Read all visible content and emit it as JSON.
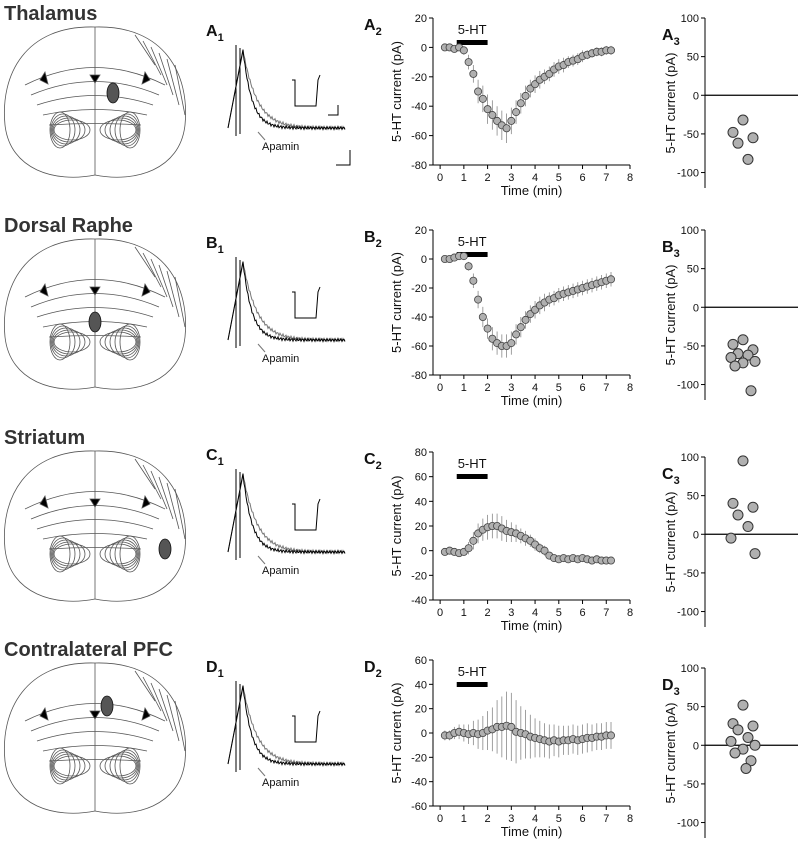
{
  "rows": [
    {
      "region": "Thalamus",
      "panel": "A",
      "panel_sub": "1",
      "annotation": "Apamin"
    },
    {
      "region": "Dorsal Raphe",
      "panel": "B",
      "panel_sub": "1",
      "annotation": "Apamin"
    },
    {
      "region": "Striatum",
      "panel": "C",
      "panel_sub": "1",
      "annotation": "Apamin"
    },
    {
      "region": "Contralateral PFC",
      "panel": "D",
      "panel_sub": "1",
      "annotation": "Apamin"
    }
  ],
  "chart_data": [
    {
      "type": "line",
      "panel": "A",
      "panel_sub": "2",
      "xlabel": "Time (min)",
      "ylabel": "5-HT current (pA)",
      "xlim": [
        -0.3,
        8
      ],
      "xticks": [
        0,
        1,
        2,
        3,
        4,
        5,
        6,
        7,
        8
      ],
      "ylim": [
        -80,
        20
      ],
      "yticks": [
        -80,
        -60,
        -40,
        -20,
        0,
        20
      ],
      "annotations": [
        {
          "text": "5-HT",
          "x": [
            0.7,
            2.0
          ]
        }
      ],
      "x": [
        0.2,
        0.4,
        0.6,
        0.8,
        1.0,
        1.2,
        1.4,
        1.6,
        1.8,
        2.0,
        2.2,
        2.4,
        2.6,
        2.8,
        3.0,
        3.2,
        3.4,
        3.6,
        3.8,
        4.0,
        4.2,
        4.4,
        4.6,
        4.8,
        5.0,
        5.2,
        5.4,
        5.6,
        5.8,
        6.0,
        6.2,
        6.4,
        6.6,
        6.8,
        7.0,
        7.2
      ],
      "series": [
        {
          "color": "#b0b0b0",
          "values": [
            0,
            0,
            -1,
            0,
            -2,
            -10,
            -18,
            -30,
            -35,
            -42,
            -46,
            -50,
            -53,
            -55,
            -50,
            -44,
            -38,
            -33,
            -28,
            -25,
            -22,
            -20,
            -18,
            -15,
            -13,
            -12,
            -10,
            -9,
            -8,
            -6,
            -5,
            -4,
            -3,
            -3,
            -2,
            -2
          ],
          "errors": [
            2,
            2,
            2,
            2,
            3,
            5,
            6,
            8,
            9,
            10,
            10,
            10,
            10,
            10,
            9,
            8,
            7,
            7,
            6,
            6,
            6,
            5,
            5,
            5,
            5,
            5,
            4,
            4,
            4,
            4,
            3,
            3,
            3,
            3,
            3,
            3
          ]
        }
      ]
    },
    {
      "type": "strip",
      "panel": "A",
      "panel_sub": "3",
      "ylabel": "5-HT current (pA)",
      "ylim": [
        -120,
        100
      ],
      "yticks": [
        -100,
        -50,
        0,
        50,
        100
      ],
      "zero_line": true,
      "color": "#b0b0b0",
      "values": [
        -32,
        -48,
        -55,
        -62,
        -83
      ]
    },
    {
      "type": "line",
      "panel": "B",
      "panel_sub": "2",
      "xlabel": "Time (min)",
      "ylabel": "5-HT current (pA)",
      "xlim": [
        -0.3,
        8
      ],
      "xticks": [
        0,
        1,
        2,
        3,
        4,
        5,
        6,
        7,
        8
      ],
      "ylim": [
        -80,
        20
      ],
      "yticks": [
        -80,
        -60,
        -40,
        -20,
        0,
        20
      ],
      "annotations": [
        {
          "text": "5-HT",
          "x": [
            0.7,
            2.0
          ]
        }
      ],
      "x": [
        0.2,
        0.4,
        0.6,
        0.8,
        1.0,
        1.2,
        1.4,
        1.6,
        1.8,
        2.0,
        2.2,
        2.4,
        2.6,
        2.8,
        3.0,
        3.2,
        3.4,
        3.6,
        3.8,
        4.0,
        4.2,
        4.4,
        4.6,
        4.8,
        5.0,
        5.2,
        5.4,
        5.6,
        5.8,
        6.0,
        6.2,
        6.4,
        6.6,
        6.8,
        7.0,
        7.2
      ],
      "series": [
        {
          "color": "#b0b0b0",
          "values": [
            0,
            0,
            1,
            2,
            2,
            -5,
            -15,
            -28,
            -40,
            -48,
            -55,
            -58,
            -60,
            -60,
            -58,
            -52,
            -47,
            -42,
            -38,
            -35,
            -32,
            -30,
            -28,
            -27,
            -25,
            -24,
            -23,
            -22,
            -21,
            -20,
            -19,
            -18,
            -17,
            -16,
            -15,
            -14
          ],
          "errors": [
            2,
            2,
            2,
            2,
            2,
            3,
            5,
            6,
            7,
            7,
            8,
            8,
            8,
            8,
            8,
            7,
            7,
            6,
            6,
            6,
            6,
            6,
            5,
            5,
            5,
            5,
            5,
            5,
            5,
            5,
            5,
            5,
            5,
            5,
            5,
            5
          ]
        }
      ]
    },
    {
      "type": "strip",
      "panel": "B",
      "panel_sub": "3",
      "ylabel": "5-HT current (pA)",
      "ylim": [
        -120,
        100
      ],
      "yticks": [
        -100,
        -50,
        0,
        50,
        100
      ],
      "zero_line": true,
      "color": "#b0b0b0",
      "values": [
        -42,
        -48,
        -55,
        -60,
        -62,
        -65,
        -70,
        -72,
        -76,
        -108
      ]
    },
    {
      "type": "line",
      "panel": "C",
      "panel_sub": "2",
      "xlabel": "Time (min)",
      "ylabel": "5-HT current (pA)",
      "xlim": [
        -0.3,
        8
      ],
      "xticks": [
        0,
        1,
        2,
        3,
        4,
        5,
        6,
        7,
        8
      ],
      "ylim": [
        -40,
        80
      ],
      "yticks": [
        -40,
        -20,
        0,
        20,
        40,
        60,
        80
      ],
      "annotations": [
        {
          "text": "5-HT",
          "x": [
            0.7,
            2.0
          ]
        }
      ],
      "x": [
        0.2,
        0.4,
        0.6,
        0.8,
        1.0,
        1.2,
        1.4,
        1.6,
        1.8,
        2.0,
        2.2,
        2.4,
        2.6,
        2.8,
        3.0,
        3.2,
        3.4,
        3.6,
        3.8,
        4.0,
        4.2,
        4.4,
        4.6,
        4.8,
        5.0,
        5.2,
        5.4,
        5.6,
        5.8,
        6.0,
        6.2,
        6.4,
        6.6,
        6.8,
        7.0,
        7.2
      ],
      "series": [
        {
          "color": "#b0b0b0",
          "values": [
            -1,
            0,
            -1,
            -2,
            -1,
            2,
            8,
            14,
            17,
            19,
            20,
            20,
            18,
            16,
            15,
            14,
            12,
            10,
            8,
            5,
            2,
            0,
            -4,
            -6,
            -7,
            -6,
            -7,
            -6,
            -7,
            -6,
            -7,
            -8,
            -7,
            -8,
            -8,
            -8
          ],
          "errors": [
            3,
            3,
            3,
            3,
            3,
            5,
            7,
            8,
            9,
            10,
            10,
            10,
            10,
            9,
            8,
            7,
            6,
            6,
            5,
            5,
            4,
            4,
            3,
            3,
            3,
            3,
            3,
            3,
            3,
            3,
            3,
            3,
            3,
            3,
            3,
            3
          ]
        }
      ]
    },
    {
      "type": "strip",
      "panel": "C",
      "panel_sub": "3",
      "ylabel": "5-HT current (pA)",
      "ylim": [
        -120,
        100
      ],
      "yticks": [
        -100,
        -50,
        0,
        50,
        100
      ],
      "zero_line": true,
      "color": "#b0b0b0",
      "values": [
        95,
        40,
        35,
        25,
        10,
        -5,
        -25
      ]
    },
    {
      "type": "line",
      "panel": "D",
      "panel_sub": "2",
      "xlabel": "Time (min)",
      "ylabel": "5-HT current (pA)",
      "xlim": [
        -0.3,
        8
      ],
      "xticks": [
        0,
        1,
        2,
        3,
        4,
        5,
        6,
        7,
        8
      ],
      "ylim": [
        -60,
        60
      ],
      "yticks": [
        -60,
        -40,
        -20,
        0,
        20,
        40,
        60
      ],
      "annotations": [
        {
          "text": "5-HT",
          "x": [
            0.7,
            2.0
          ]
        }
      ],
      "x": [
        0.2,
        0.4,
        0.6,
        0.8,
        1.0,
        1.2,
        1.4,
        1.6,
        1.8,
        2.0,
        2.2,
        2.4,
        2.6,
        2.8,
        3.0,
        3.2,
        3.4,
        3.6,
        3.8,
        4.0,
        4.2,
        4.4,
        4.6,
        4.8,
        5.0,
        5.2,
        5.4,
        5.6,
        5.8,
        6.0,
        6.2,
        6.4,
        6.6,
        6.8,
        7.0,
        7.2
      ],
      "series": [
        {
          "color": "#b0b0b0",
          "values": [
            -2,
            -2,
            0,
            1,
            0,
            -1,
            0,
            -1,
            0,
            2,
            3,
            5,
            5,
            6,
            5,
            1,
            0,
            -1,
            -3,
            -4,
            -5,
            -6,
            -7,
            -6,
            -7,
            -6,
            -6,
            -5,
            -6,
            -5,
            -4,
            -4,
            -3,
            -3,
            -2,
            -2
          ],
          "errors": [
            4,
            4,
            5,
            6,
            7,
            8,
            10,
            12,
            14,
            16,
            18,
            22,
            25,
            28,
            28,
            26,
            22,
            20,
            18,
            16,
            15,
            14,
            14,
            13,
            13,
            12,
            12,
            12,
            12,
            12,
            12,
            11,
            11,
            11,
            11,
            11
          ]
        }
      ]
    },
    {
      "type": "strip",
      "panel": "D",
      "panel_sub": "3",
      "ylabel": "5-HT current (pA)",
      "ylim": [
        -120,
        100
      ],
      "yticks": [
        -100,
        -50,
        0,
        50,
        100
      ],
      "zero_line": true,
      "color": "#b0b0b0",
      "values": [
        52,
        28,
        25,
        20,
        10,
        5,
        0,
        -5,
        -10,
        -20,
        -30
      ]
    }
  ]
}
